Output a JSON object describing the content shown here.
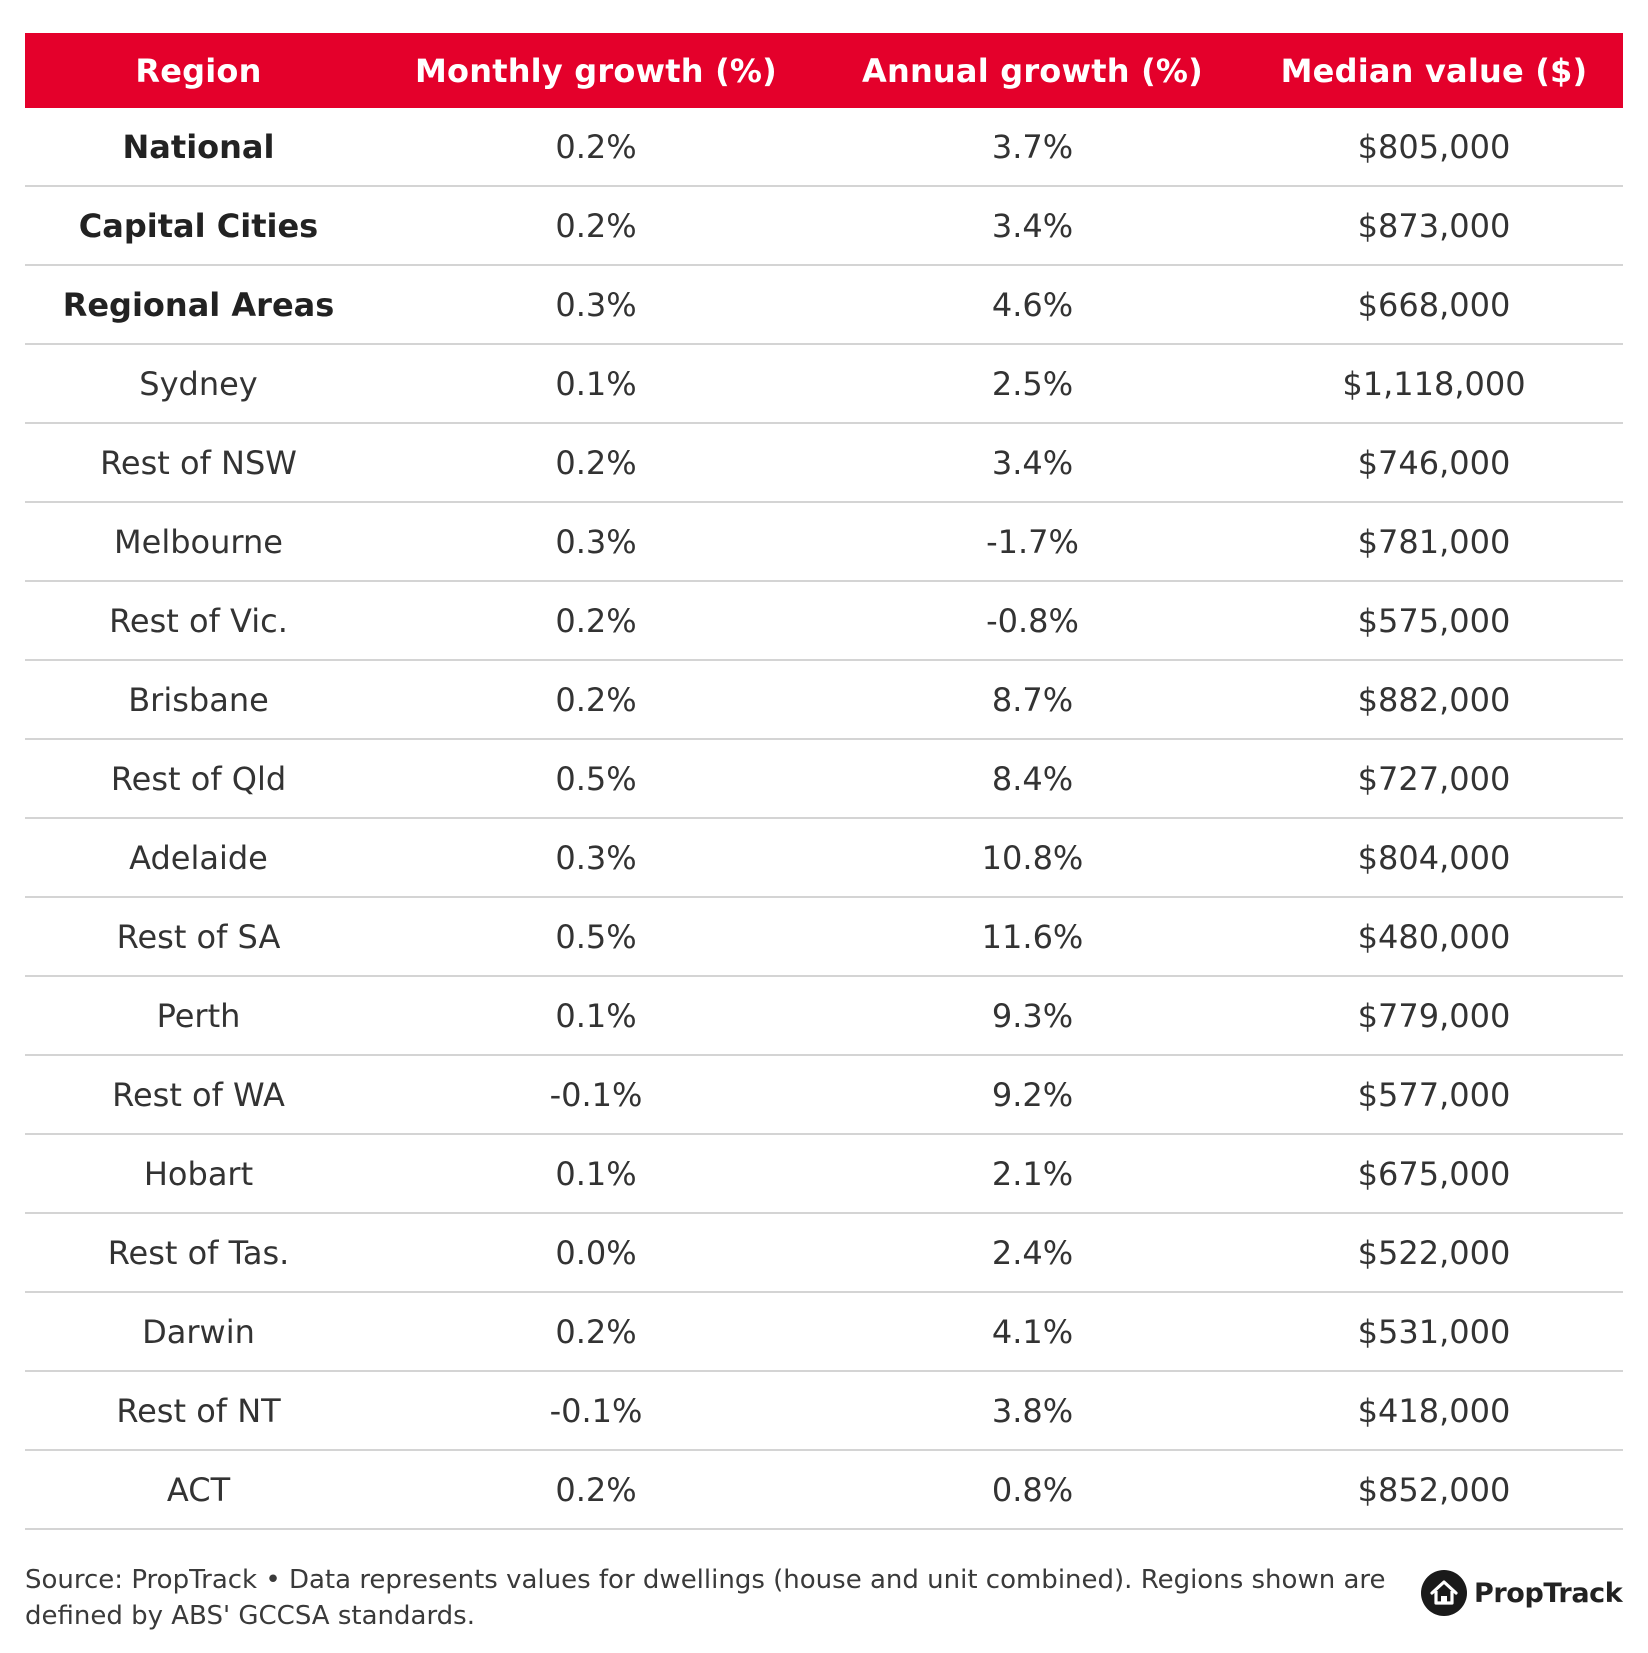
{
  "colors": {
    "header_bg": "#e4002b",
    "header_text": "#ffffff",
    "body_text": "#333333",
    "row_divider": "#d4d4d4"
  },
  "chart_data": {
    "type": "table",
    "columns": [
      "Region",
      "Monthly growth (%)",
      "Annual growth (%)",
      "Median value ($)"
    ],
    "rows": [
      {
        "region": "National",
        "monthly": "0.2%",
        "annual": "3.7%",
        "median": "$805,000",
        "bold": true
      },
      {
        "region": "Capital Cities",
        "monthly": "0.2%",
        "annual": "3.4%",
        "median": "$873,000",
        "bold": true
      },
      {
        "region": "Regional Areas",
        "monthly": "0.3%",
        "annual": "4.6%",
        "median": "$668,000",
        "bold": true
      },
      {
        "region": "Sydney",
        "monthly": "0.1%",
        "annual": "2.5%",
        "median": "$1,118,000",
        "bold": false
      },
      {
        "region": "Rest of NSW",
        "monthly": "0.2%",
        "annual": "3.4%",
        "median": "$746,000",
        "bold": false
      },
      {
        "region": "Melbourne",
        "monthly": "0.3%",
        "annual": "-1.7%",
        "median": "$781,000",
        "bold": false
      },
      {
        "region": "Rest of Vic.",
        "monthly": "0.2%",
        "annual": "-0.8%",
        "median": "$575,000",
        "bold": false
      },
      {
        "region": "Brisbane",
        "monthly": "0.2%",
        "annual": "8.7%",
        "median": "$882,000",
        "bold": false
      },
      {
        "region": "Rest of Qld",
        "monthly": "0.5%",
        "annual": "8.4%",
        "median": "$727,000",
        "bold": false
      },
      {
        "region": "Adelaide",
        "monthly": "0.3%",
        "annual": "10.8%",
        "median": "$804,000",
        "bold": false
      },
      {
        "region": "Rest of SA",
        "monthly": "0.5%",
        "annual": "11.6%",
        "median": "$480,000",
        "bold": false
      },
      {
        "region": "Perth",
        "monthly": "0.1%",
        "annual": "9.3%",
        "median": "$779,000",
        "bold": false
      },
      {
        "region": "Rest of WA",
        "monthly": "-0.1%",
        "annual": "9.2%",
        "median": "$577,000",
        "bold": false
      },
      {
        "region": "Hobart",
        "monthly": "0.1%",
        "annual": "2.1%",
        "median": "$675,000",
        "bold": false
      },
      {
        "region": "Rest of Tas.",
        "monthly": "0.0%",
        "annual": "2.4%",
        "median": "$522,000",
        "bold": false
      },
      {
        "region": "Darwin",
        "monthly": "0.2%",
        "annual": "4.1%",
        "median": "$531,000",
        "bold": false
      },
      {
        "region": "Rest of NT",
        "monthly": "-0.1%",
        "annual": "3.8%",
        "median": "$418,000",
        "bold": false
      },
      {
        "region": "ACT",
        "monthly": "0.2%",
        "annual": "0.8%",
        "median": "$852,000",
        "bold": false
      }
    ]
  },
  "footer": {
    "source_text": "Source: PropTrack • Data represents values for dwellings (house and unit combined). Regions shown are defined by ABS' GCCSA standards."
  },
  "brand": {
    "name": "PropTrack",
    "logo_icon": "house-icon"
  }
}
